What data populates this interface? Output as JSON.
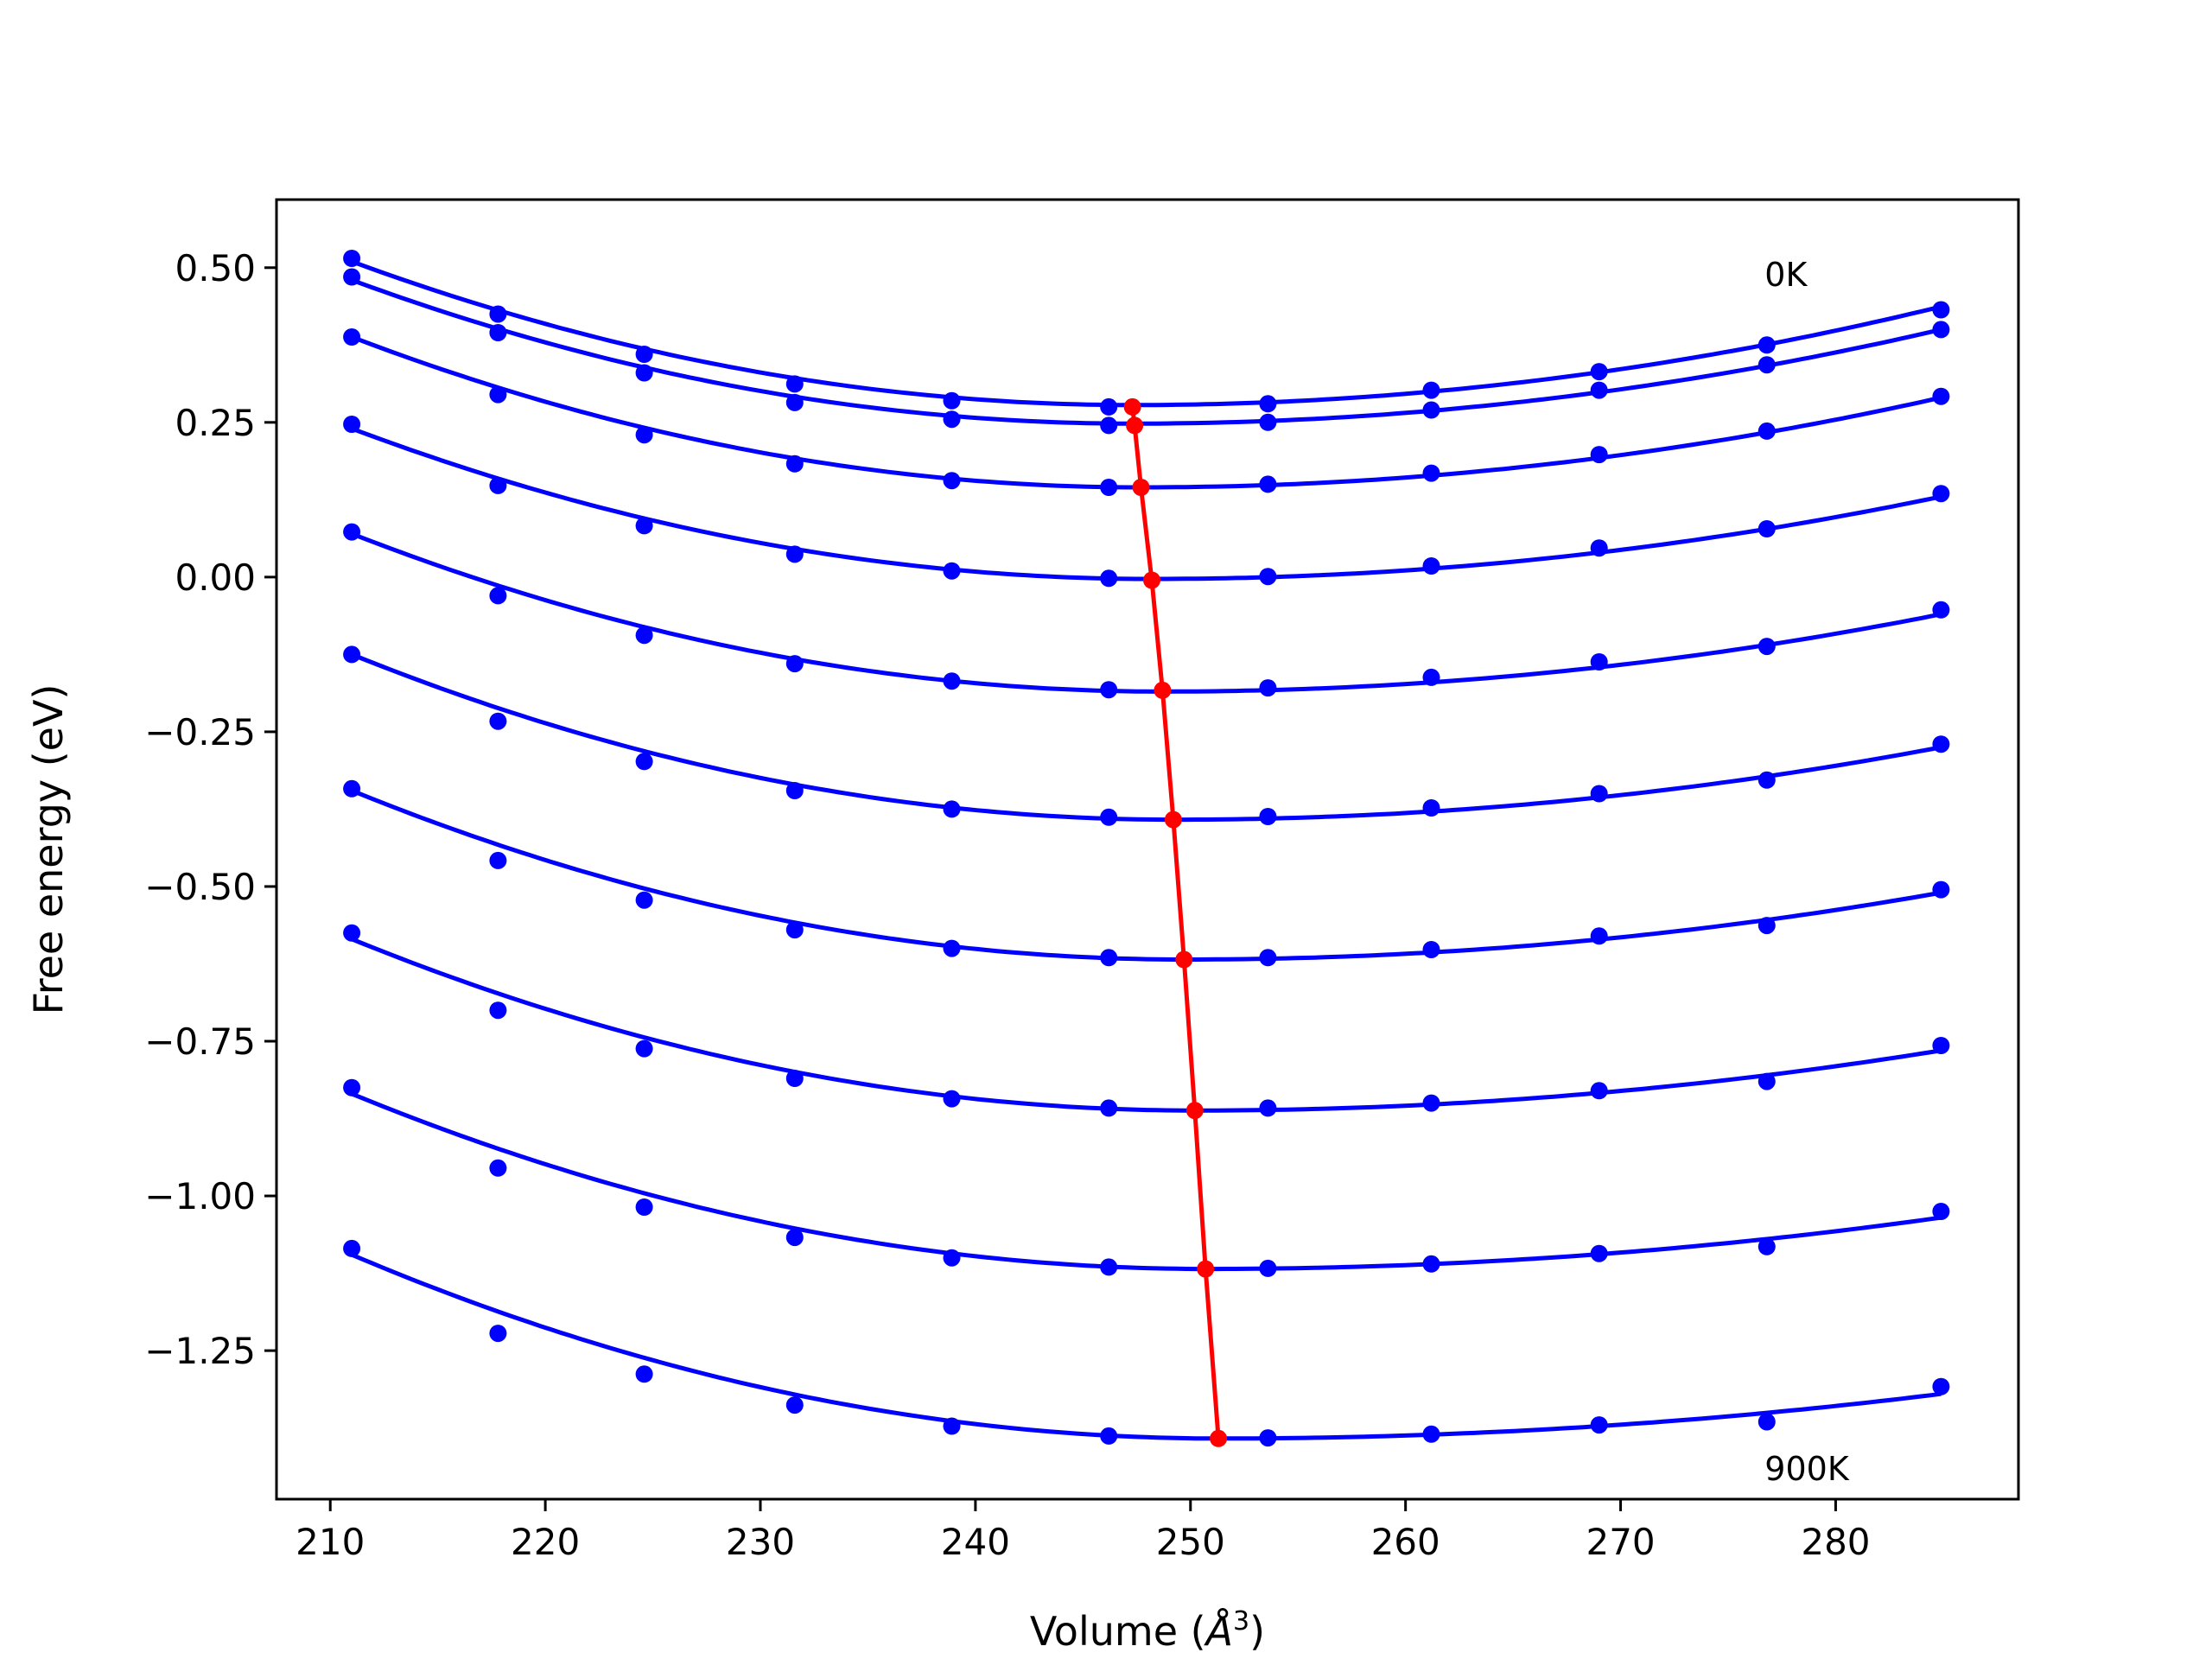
{
  "chart_data": {
    "type": "line",
    "xlabel": "Volume (Å³)",
    "xlabel_main": "Volume (",
    "xlabel_unit": "Å",
    "xlabel_exp": "3",
    "xlabel_close": ")",
    "ylabel": "Free energy (eV)",
    "xlim": [
      207.5,
      288.5
    ],
    "ylim": [
      -1.49,
      0.61
    ],
    "xticks": [
      210,
      220,
      230,
      240,
      250,
      260,
      270,
      280
    ],
    "xtick_labels": [
      "210",
      "220",
      "230",
      "240",
      "250",
      "260",
      "270",
      "280"
    ],
    "yticks": [
      0.5,
      0.25,
      0.0,
      -0.25,
      -0.5,
      -0.75,
      -1.0,
      -1.25
    ],
    "ytick_labels": [
      "0.50",
      "0.25",
      "0.00",
      "−0.25",
      "−0.50",
      "−0.75",
      "−1.00",
      "−1.25"
    ],
    "annotations": [
      {
        "text": "0K",
        "x": 276.7,
        "y": 0.49
      },
      {
        "text": "900K",
        "x": 276.7,
        "y": -1.44
      }
    ],
    "x": [
      211.0,
      217.8,
      224.6,
      231.6,
      238.9,
      246.2,
      253.6,
      261.2,
      269.0,
      276.8,
      284.9
    ],
    "series": [
      {
        "values": [
          0.515,
          0.425,
          0.36,
          0.312,
          0.285,
          0.275,
          0.28,
          0.302,
          0.332,
          0.375,
          0.432
        ],
        "fit": [
          [
            0.51,
            0.278,
            0.437,
            247.3
          ]
        ]
      },
      {
        "values": [
          0.485,
          0.395,
          0.33,
          0.282,
          0.255,
          0.245,
          0.25,
          0.27,
          0.302,
          0.343,
          0.4
        ],
        "fit": [
          [
            0.48,
            0.248,
            0.4,
            247.3
          ]
        ]
      },
      {
        "values": [
          0.388,
          0.295,
          0.23,
          0.183,
          0.156,
          0.145,
          0.15,
          0.168,
          0.198,
          0.236,
          0.292
        ],
        "fit": [
          [
            0.388,
            0.145,
            0.29,
            247.7
          ]
        ]
      },
      {
        "values": [
          0.247,
          0.148,
          0.083,
          0.037,
          0.01,
          -0.002,
          0.001,
          0.018,
          0.047,
          0.078,
          0.135
        ],
        "fit": [
          [
            0.24,
            -0.003,
            0.13,
            248.2
          ]
        ]
      },
      {
        "values": [
          0.073,
          -0.03,
          -0.094,
          -0.14,
          -0.168,
          -0.182,
          -0.179,
          -0.162,
          -0.137,
          -0.112,
          -0.053
        ],
        "fit": [
          [
            0.07,
            -0.185,
            -0.06,
            248.7
          ]
        ]
      },
      {
        "values": [
          -0.125,
          -0.233,
          -0.298,
          -0.345,
          -0.375,
          -0.388,
          -0.387,
          -0.373,
          -0.35,
          -0.328,
          -0.27
        ],
        "fit": [
          [
            -0.125,
            -0.392,
            -0.275,
            249.2
          ]
        ]
      },
      {
        "values": [
          -0.342,
          -0.458,
          -0.522,
          -0.57,
          -0.6,
          -0.615,
          -0.615,
          -0.602,
          -0.58,
          -0.563,
          -0.505
        ],
        "fit": [
          [
            -0.345,
            -0.618,
            -0.51,
            249.7
          ]
        ]
      },
      {
        "values": [
          -0.575,
          -0.7,
          -0.762,
          -0.81,
          -0.843,
          -0.858,
          -0.858,
          -0.85,
          -0.83,
          -0.815,
          -0.757
        ],
        "fit": [
          [
            -0.585,
            -0.862,
            -0.765,
            250.2
          ]
        ]
      },
      {
        "values": [
          -0.825,
          -0.955,
          -1.018,
          -1.067,
          -1.1,
          -1.115,
          -1.117,
          -1.11,
          -1.093,
          -1.082,
          -1.025
        ],
        "fit": [
          [
            -0.835,
            -1.118,
            -1.035,
            250.7
          ]
        ]
      },
      {
        "values": [
          -1.085,
          -1.222,
          -1.288,
          -1.338,
          -1.372,
          -1.388,
          -1.391,
          -1.385,
          -1.37,
          -1.365,
          -1.308
        ],
        "fit": [
          [
            -1.095,
            -1.392,
            -1.32,
            251.3
          ]
        ]
      }
    ],
    "equilibrium_line": {
      "x": [
        247.3,
        247.4,
        247.7,
        248.2,
        248.7,
        249.2,
        249.7,
        250.2,
        250.7,
        251.3
      ],
      "y": [
        0.275,
        0.245,
        0.145,
        -0.005,
        -0.183,
        -0.392,
        -0.618,
        -0.862,
        -1.118,
        -1.392
      ]
    },
    "colors": {
      "series": "#0000ff",
      "equilibrium": "#ff0000",
      "axes": "#000000"
    }
  }
}
